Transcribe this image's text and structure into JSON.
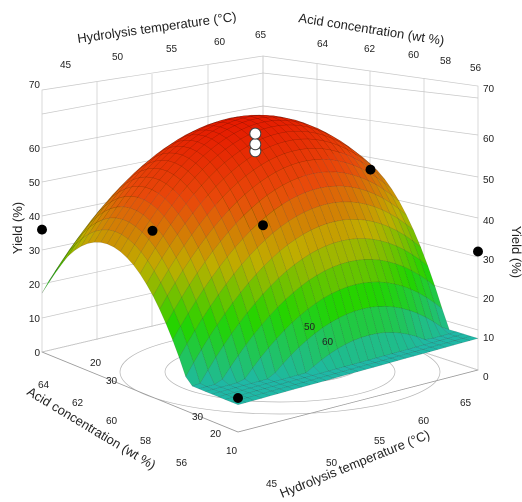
{
  "chart_data": {
    "type": "surface3d",
    "title": "",
    "axes": {
      "x": {
        "label": "Hydrolysis temperature (°C)",
        "range": [
          45,
          65
        ],
        "ticks": [
          45,
          50,
          55,
          60,
          65
        ]
      },
      "y": {
        "label": "Acid concentration (wt %)",
        "range": [
          56,
          64
        ],
        "ticks": [
          56,
          58,
          60,
          62,
          64
        ]
      },
      "z": {
        "label": "Yield (%)",
        "range": [
          0,
          70
        ],
        "ticks": [
          0,
          10,
          20,
          30,
          40,
          50,
          60,
          70
        ]
      }
    },
    "surface": {
      "colormap": [
        "#1fb8a6",
        "#22d400",
        "#bfae00",
        "#e84a0a",
        "#e51a00"
      ],
      "model": "quadratic",
      "approx_peak": {
        "temperature": 56,
        "acid": 61,
        "yield": 66
      }
    },
    "points_filled": [
      {
        "temperature": 45,
        "acid": 56,
        "yield": 10
      },
      {
        "temperature": 65,
        "acid": 64,
        "yield": 22
      },
      {
        "temperature": 65,
        "acid": 56,
        "yield": 30
      },
      {
        "temperature": 45,
        "acid": 64,
        "yield": 36
      },
      {
        "temperature": 55,
        "acid": 64,
        "yield": 28
      },
      {
        "temperature": 65,
        "acid": 60,
        "yield": 45
      }
    ],
    "points_open": [
      {
        "temperature": 55,
        "acid": 60,
        "yield": 60
      },
      {
        "temperature": 55,
        "acid": 60,
        "yield": 62
      },
      {
        "temperature": 55,
        "acid": 60,
        "yield": 65
      }
    ],
    "contour_labels": [
      "10",
      "20",
      "30",
      "20",
      "30",
      "50",
      "60"
    ],
    "grid": true,
    "legend": "none"
  }
}
